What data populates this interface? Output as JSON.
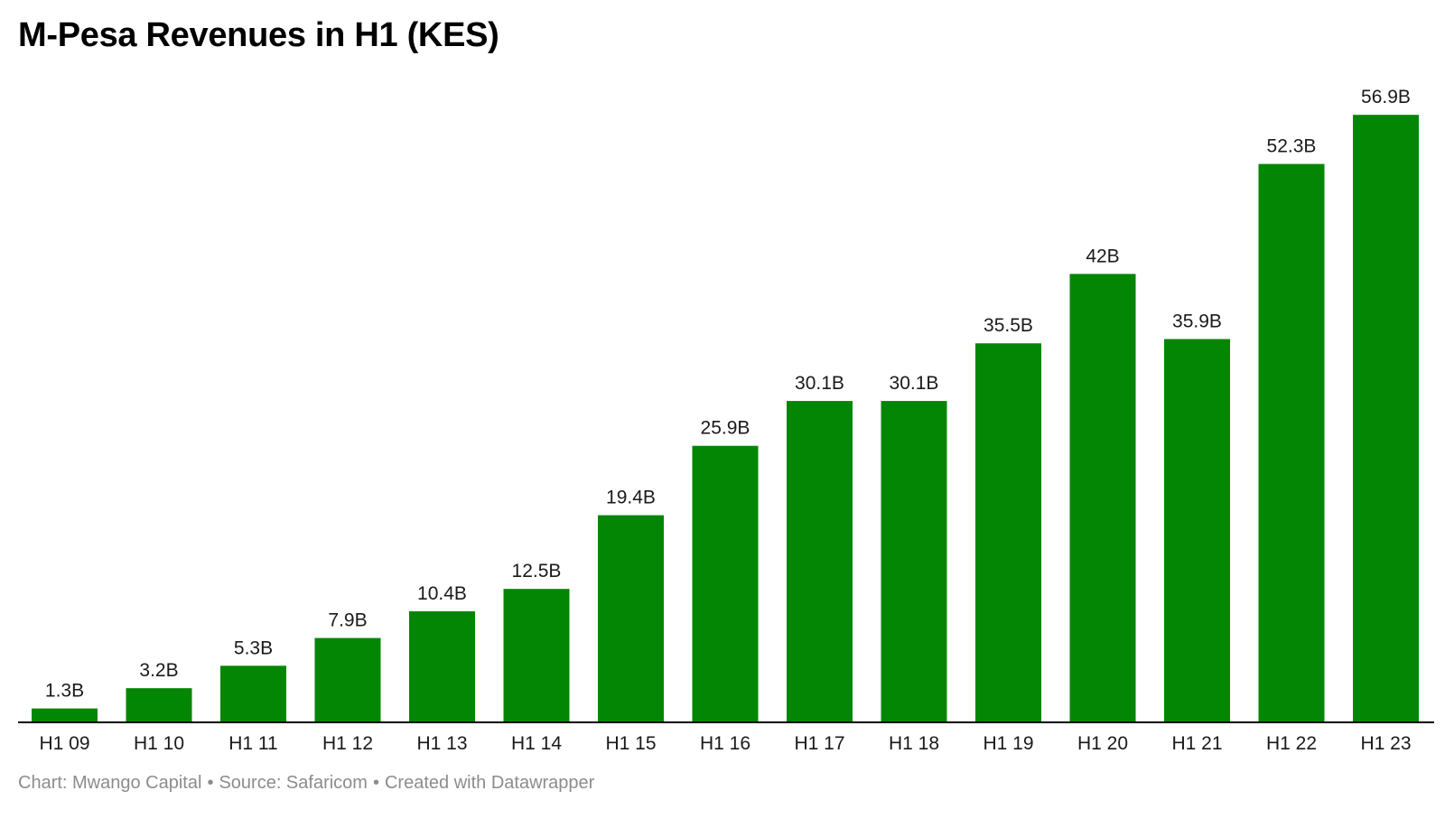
{
  "chart_data": {
    "type": "bar",
    "title": "M-Pesa Revenues in H1 (KES)",
    "categories": [
      "H1 09",
      "H1 10",
      "H1 11",
      "H1 12",
      "H1 13",
      "H1 14",
      "H1 15",
      "H1 16",
      "H1 17",
      "H1 18",
      "H1 19",
      "H1 20",
      "H1 21",
      "H1 22",
      "H1 23"
    ],
    "values": [
      1.3,
      3.2,
      5.3,
      7.9,
      10.4,
      12.5,
      19.4,
      25.9,
      30.1,
      30.1,
      35.5,
      42,
      35.9,
      52.3,
      56.9
    ],
    "value_labels": [
      "1.3B",
      "3.2B",
      "5.3B",
      "7.9B",
      "10.4B",
      "12.5B",
      "19.4B",
      "25.9B",
      "30.1B",
      "30.1B",
      "35.5B",
      "42B",
      "35.9B",
      "52.3B",
      "56.9B"
    ],
    "xlabel": "",
    "ylabel": "",
    "ylim": [
      0,
      57
    ],
    "grid": false,
    "bar_color": "#038603",
    "axis_color": "#000000"
  },
  "footer": {
    "chart_credit": "Chart: Mwango Capital",
    "source": "Source: Safaricom",
    "created_with": "Created with Datawrapper",
    "separator": "•"
  }
}
